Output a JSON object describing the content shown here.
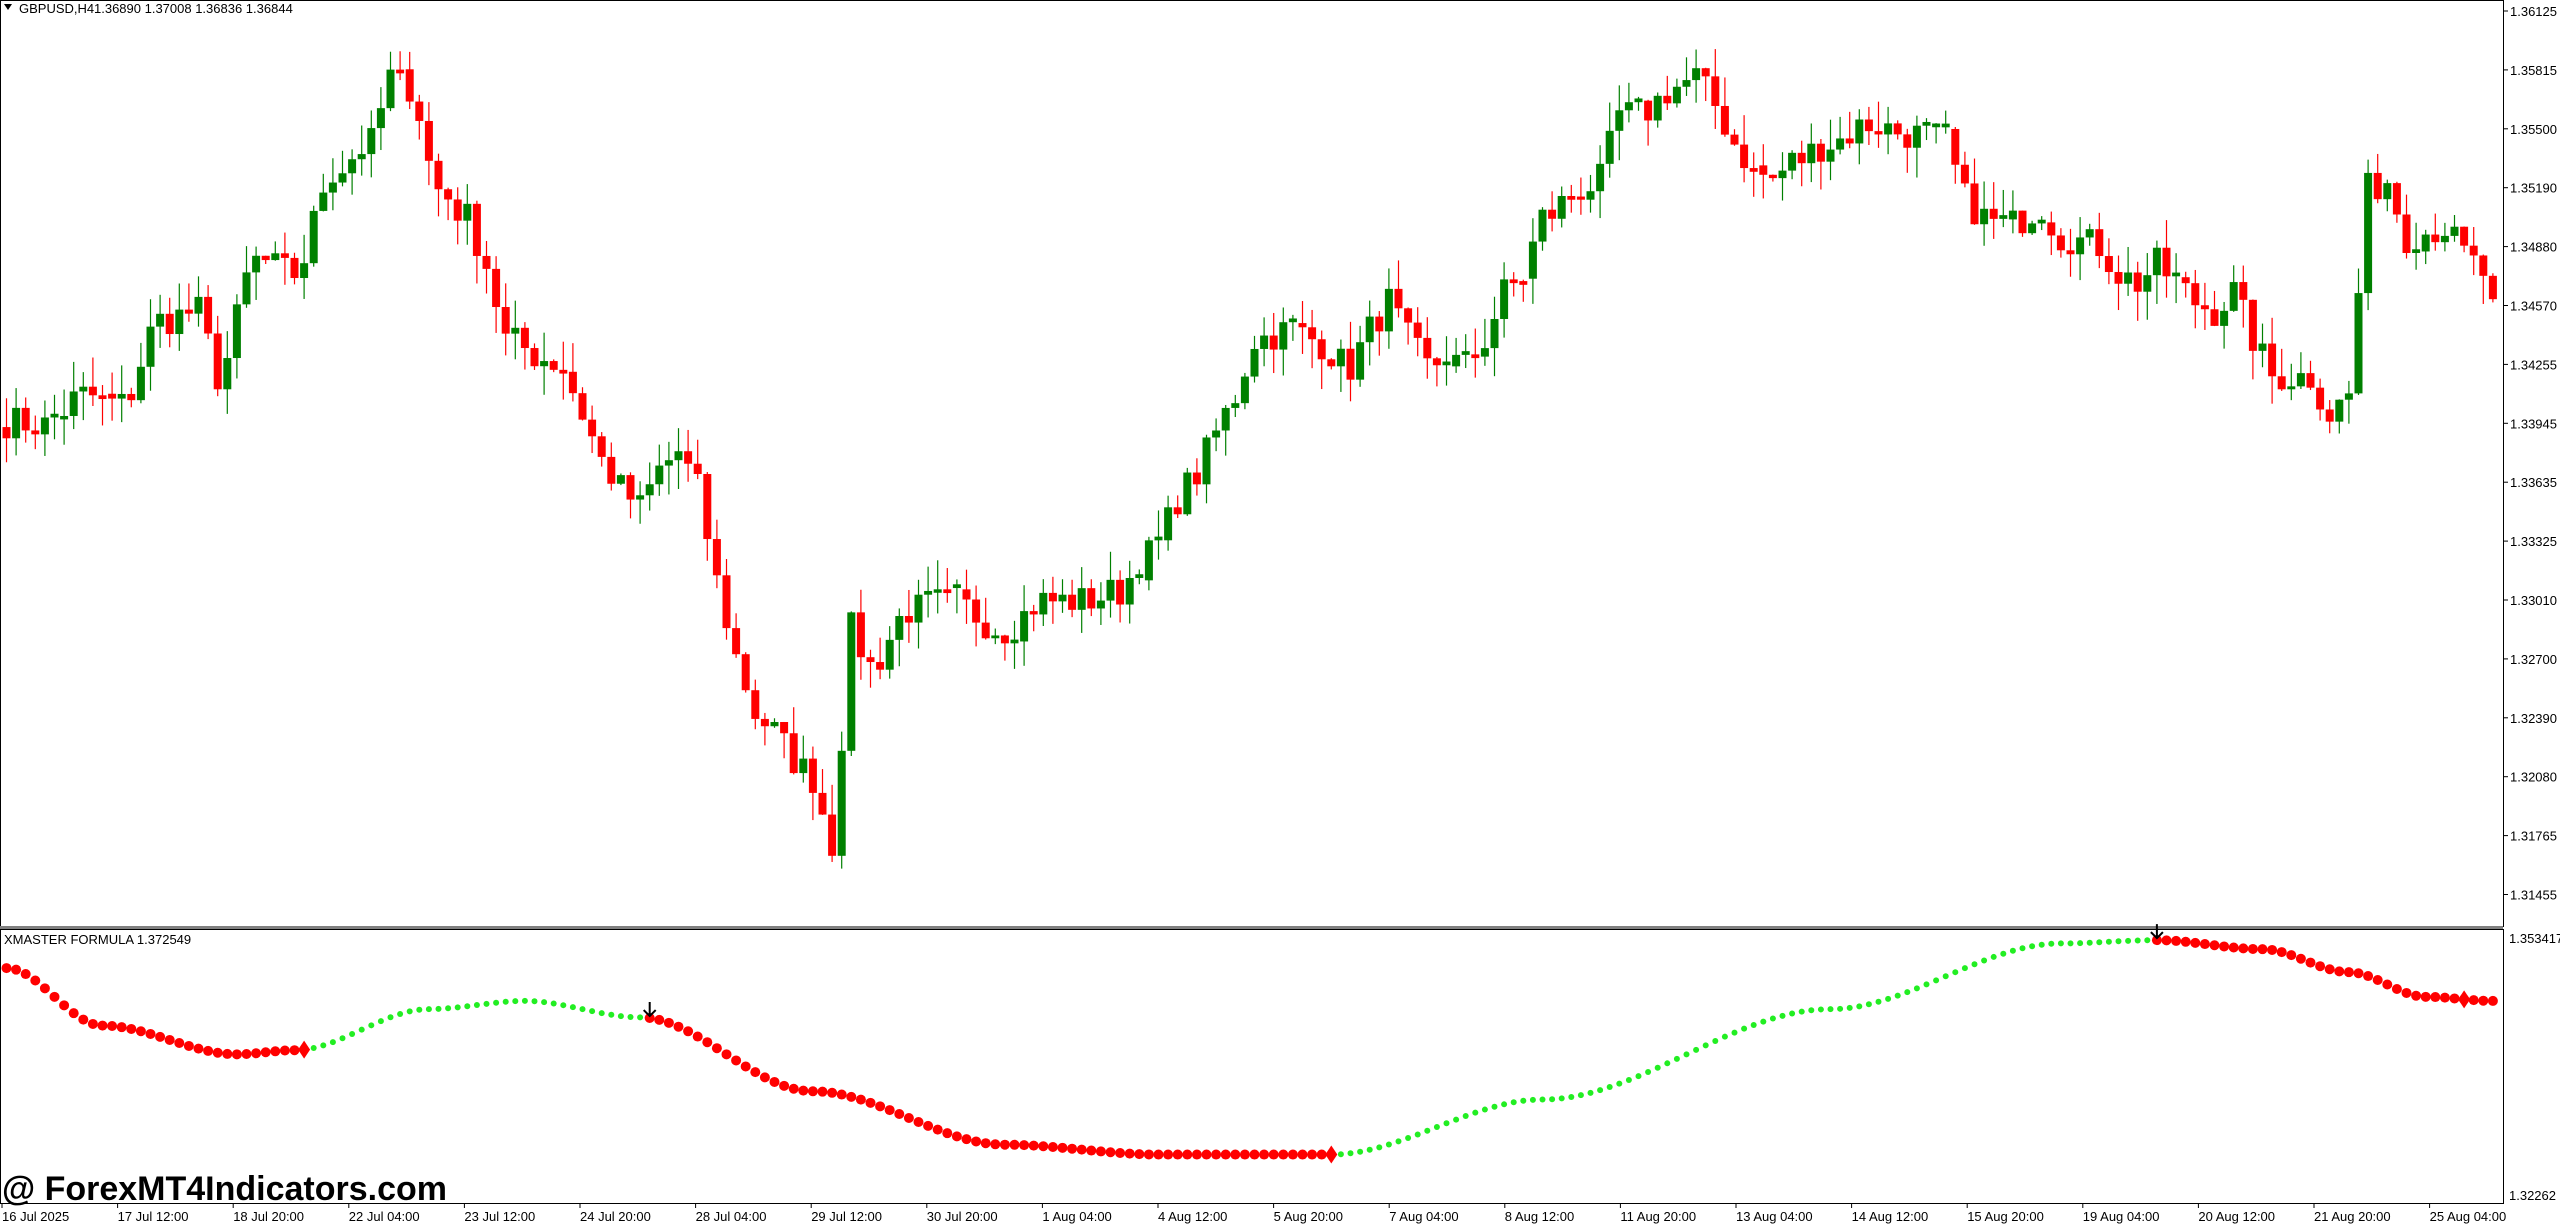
{
  "header": {
    "symbol": "GBPUSD,H4",
    "ohlc": "1.36890 1.37008 1.36836 1.36844"
  },
  "indicator": {
    "label": "XMASTER FORMULA 1.372549",
    "axis_top": "1.353417",
    "axis_bottom": "1.32262",
    "colors": {
      "down": "#ff0000",
      "up": "#22ee22"
    }
  },
  "watermark": "@ ForexMT4Indicators.com",
  "colors": {
    "bull": "#008000",
    "bear": "#ff0000"
  },
  "chart_data": {
    "type": "candlestick",
    "price_ticks": [
      "1.36125",
      "1.35815",
      "1.35500",
      "1.35190",
      "1.34880",
      "1.34570",
      "1.34255",
      "1.33945",
      "1.33635",
      "1.33325",
      "1.33010",
      "1.32700",
      "1.32390",
      "1.32080",
      "1.31765",
      "1.31455"
    ],
    "time_ticks": [
      "16 Jul 2025",
      "17 Jul 12:00",
      "18 Jul 20:00",
      "22 Jul 04:00",
      "23 Jul 12:00",
      "24 Jul 20:00",
      "28 Jul 04:00",
      "29 Jul 12:00",
      "30 Jul 20:00",
      "1 Aug 04:00",
      "4 Aug 12:00",
      "5 Aug 20:00",
      "7 Aug 04:00",
      "8 Aug 12:00",
      "11 Aug 20:00",
      "13 Aug 04:00",
      "14 Aug 12:00",
      "15 Aug 20:00",
      "19 Aug 04:00",
      "20 Aug 12:00",
      "21 Aug 20:00",
      "25 Aug 04:00"
    ],
    "price_anchors": [
      [
        0,
        1.3396
      ],
      [
        4,
        1.3394
      ],
      [
        8,
        1.341
      ],
      [
        12,
        1.3405
      ],
      [
        16,
        1.345
      ],
      [
        20,
        1.3455
      ],
      [
        22,
        1.342
      ],
      [
        26,
        1.3482
      ],
      [
        30,
        1.3475
      ],
      [
        34,
        1.353
      ],
      [
        38,
        1.3545
      ],
      [
        40,
        1.358
      ],
      [
        42,
        1.3575
      ],
      [
        45,
        1.352
      ],
      [
        48,
        1.3505
      ],
      [
        50,
        1.348
      ],
      [
        52,
        1.344
      ],
      [
        56,
        1.343
      ],
      [
        58,
        1.3425
      ],
      [
        60,
        1.34
      ],
      [
        62,
        1.3375
      ],
      [
        64,
        1.336
      ],
      [
        66,
        1.335
      ],
      [
        68,
        1.337
      ],
      [
        70,
        1.338
      ],
      [
        72,
        1.336
      ],
      [
        74,
        1.331
      ],
      [
        76,
        1.327
      ],
      [
        78,
        1.324
      ],
      [
        80,
        1.323
      ],
      [
        82,
        1.3215
      ],
      [
        84,
        1.3205
      ],
      [
        86,
        1.317
      ],
      [
        88,
        1.3285
      ],
      [
        90,
        1.3265
      ],
      [
        94,
        1.3295
      ],
      [
        98,
        1.33
      ],
      [
        104,
        1.3285
      ],
      [
        108,
        1.33
      ],
      [
        112,
        1.33
      ],
      [
        116,
        1.3305
      ],
      [
        118,
        1.332
      ],
      [
        120,
        1.333
      ],
      [
        122,
        1.3355
      ],
      [
        124,
        1.3368
      ],
      [
        126,
        1.339
      ],
      [
        128,
        1.341
      ],
      [
        130,
        1.344
      ],
      [
        134,
        1.3445
      ],
      [
        136,
        1.344
      ],
      [
        140,
        1.3425
      ],
      [
        142,
        1.3445
      ],
      [
        144,
        1.346
      ],
      [
        146,
        1.344
      ],
      [
        148,
        1.3425
      ],
      [
        150,
        1.343
      ],
      [
        152,
        1.3425
      ],
      [
        154,
        1.344
      ],
      [
        156,
        1.3465
      ],
      [
        158,
        1.3475
      ],
      [
        160,
        1.3505
      ],
      [
        164,
        1.352
      ],
      [
        166,
        1.3525
      ],
      [
        168,
        1.356
      ],
      [
        170,
        1.356
      ],
      [
        174,
        1.3575
      ],
      [
        176,
        1.358
      ],
      [
        178,
        1.3565
      ],
      [
        180,
        1.3545
      ],
      [
        182,
        1.353
      ],
      [
        184,
        1.3525
      ],
      [
        186,
        1.3535
      ],
      [
        190,
        1.3545
      ],
      [
        194,
        1.3555
      ],
      [
        198,
        1.355
      ],
      [
        202,
        1.3545
      ],
      [
        204,
        1.3515
      ],
      [
        206,
        1.3505
      ],
      [
        208,
        1.35
      ],
      [
        212,
        1.351
      ],
      [
        214,
        1.3495
      ],
      [
        218,
        1.349
      ],
      [
        220,
        1.3475
      ],
      [
        222,
        1.347
      ],
      [
        224,
        1.348
      ],
      [
        226,
        1.347
      ],
      [
        228,
        1.346
      ],
      [
        230,
        1.3455
      ],
      [
        232,
        1.3465
      ],
      [
        234,
        1.344
      ],
      [
        236,
        1.342
      ],
      [
        240,
        1.342
      ],
      [
        242,
        1.34
      ],
      [
        244,
        1.341
      ],
      [
        246,
        1.352
      ],
      [
        248,
        1.3525
      ],
      [
        250,
        1.3495
      ],
      [
        254,
        1.35
      ],
      [
        256,
        1.3485
      ],
      [
        258,
        1.3475
      ],
      [
        259,
        1.3455
      ]
    ],
    "price_range": [
      1.3138,
      1.3616
    ],
    "indicator_anchors": [
      [
        0,
        1.35
      ],
      [
        10,
        1.343
      ],
      [
        24,
        1.3395
      ],
      [
        30,
        1.34
      ],
      [
        44,
        1.345
      ],
      [
        54,
        1.346
      ],
      [
        66,
        1.344
      ],
      [
        84,
        1.335
      ],
      [
        104,
        1.3285
      ],
      [
        120,
        1.3273
      ],
      [
        138,
        1.3273
      ],
      [
        160,
        1.334
      ],
      [
        190,
        1.345
      ],
      [
        214,
        1.353
      ],
      [
        224,
        1.3534
      ],
      [
        235,
        1.3523
      ],
      [
        244,
        1.3495
      ],
      [
        252,
        1.3465
      ],
      [
        259,
        1.346
      ]
    ],
    "indicator_range": [
      1.32262,
      1.353417
    ],
    "indicator_signals": [
      {
        "i": 31,
        "type": "buy"
      },
      {
        "i": 67,
        "type": "sell"
      },
      {
        "i": 138,
        "type": "buy"
      },
      {
        "i": 224,
        "type": "sell"
      },
      {
        "i": 256,
        "type": "buy"
      }
    ],
    "indicator_trend_changes": [
      31,
      67,
      138,
      224
    ]
  }
}
